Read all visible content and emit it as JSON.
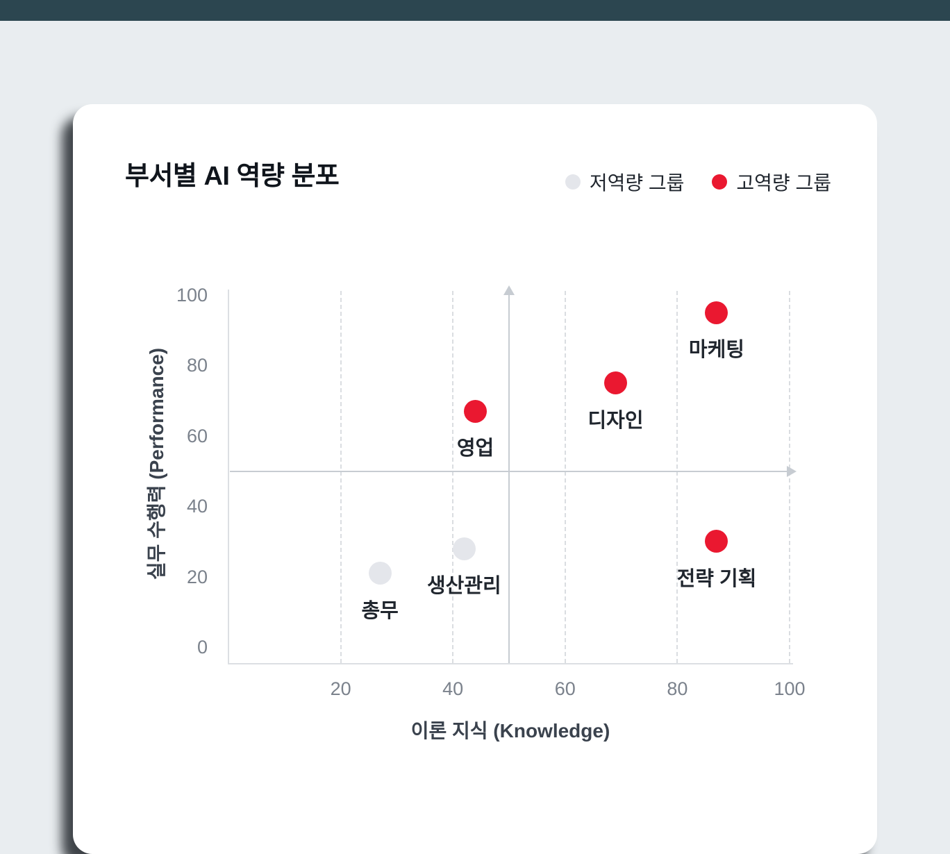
{
  "page": {
    "topbar_color": "#2c4650",
    "background_color": "#e9edf0",
    "card_color": "#ffffff"
  },
  "chart_data": {
    "type": "scatter",
    "title": "부서별 AI 역량 분포",
    "xlabel": "이론 지식 (Knowledge)",
    "ylabel": "실무 수행력 (Performance)",
    "xlim": [
      0,
      100
    ],
    "ylim": [
      0,
      100
    ],
    "x_ticks": [
      20,
      40,
      60,
      80,
      100
    ],
    "y_ticks": [
      0,
      20,
      40,
      60,
      80,
      100
    ],
    "grid": "vertical-dashed",
    "legend_position": "top-right",
    "quadrant_center": {
      "x": 50,
      "y": 50
    },
    "series": [
      {
        "name": "저역량 그룹",
        "color": "#e4e6eb",
        "points": [
          {
            "label": "총무",
            "x": 27,
            "y": 21
          },
          {
            "label": "생산관리",
            "x": 42,
            "y": 28
          }
        ]
      },
      {
        "name": "고역량 그룹",
        "color": "#ea1830",
        "points": [
          {
            "label": "영업",
            "x": 44,
            "y": 67
          },
          {
            "label": "디자인",
            "x": 69,
            "y": 75
          },
          {
            "label": "마케팅",
            "x": 87,
            "y": 95
          },
          {
            "label": "전략 기획",
            "x": 87,
            "y": 30
          }
        ]
      }
    ]
  }
}
